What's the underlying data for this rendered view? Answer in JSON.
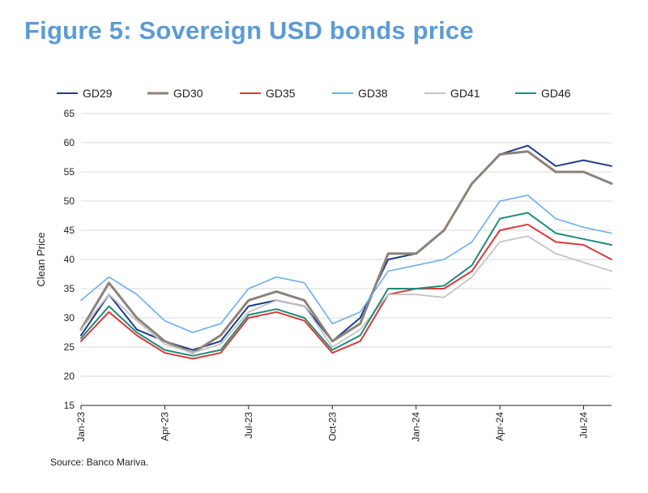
{
  "figure": {
    "title": "Figure 5: Sovereign USD bonds price",
    "source": "Source: Banco Mariva."
  },
  "chart_data": {
    "type": "line",
    "title": "Figure 5: Sovereign USD bonds price",
    "xlabel": "",
    "ylabel": "Clean Price",
    "ylim": [
      15,
      65
    ],
    "yticks": [
      15,
      20,
      25,
      30,
      35,
      40,
      45,
      50,
      55,
      60,
      65
    ],
    "grid": true,
    "legend_position": "top",
    "x_tick_labels": [
      "Jan-23",
      "Apr-23",
      "Jul-23",
      "Oct-23",
      "Jan-24",
      "Apr-24",
      "Jul-24"
    ],
    "x": [
      "Jan-23",
      "Feb-23",
      "Mar-23",
      "Apr-23",
      "May-23",
      "Jun-23",
      "Jul-23",
      "Aug-23",
      "Sep-23",
      "Oct-23",
      "Nov-23",
      "Dec-23",
      "Jan-24",
      "Feb-24",
      "Mar-24",
      "Apr-24",
      "May-24",
      "Jun-24",
      "Jul-24",
      "Aug-24"
    ],
    "series": [
      {
        "name": "GD29",
        "color": "#1f3c88",
        "width": 2.0,
        "values": [
          27,
          34,
          28,
          26,
          24.5,
          26,
          32,
          33,
          32,
          26,
          30,
          40,
          41,
          45,
          53,
          58,
          59.5,
          56,
          57,
          56
        ]
      },
      {
        "name": "GD30",
        "color": "#8c8279",
        "width": 3.0,
        "values": [
          28,
          36,
          30,
          26,
          24,
          27,
          33,
          34.5,
          33,
          26,
          29,
          41,
          41,
          45,
          53,
          58,
          58.5,
          55,
          55,
          53
        ]
      },
      {
        "name": "GD35",
        "color": "#d93a3a",
        "width": 2.0,
        "values": [
          26,
          31,
          27,
          24,
          23,
          24,
          30,
          31,
          29.5,
          24,
          26,
          34,
          35,
          35,
          38,
          45,
          46,
          43,
          42.5,
          40
        ]
      },
      {
        "name": "GD38",
        "color": "#6aaef0",
        "width": 1.6,
        "values": [
          33,
          37,
          34,
          29.5,
          27.5,
          29,
          35,
          37,
          36,
          29,
          31,
          38,
          39,
          40,
          43,
          50,
          51,
          47,
          45.5,
          44.5
        ]
      },
      {
        "name": "GD41",
        "color": "#c4c4c4",
        "width": 1.8,
        "values": [
          28,
          34,
          29.5,
          25.5,
          24,
          25.5,
          31,
          33,
          32,
          25,
          28,
          34,
          34,
          33.5,
          37,
          43,
          44,
          41,
          39.5,
          38
        ]
      },
      {
        "name": "GD46",
        "color": "#1e8c7a",
        "width": 2.0,
        "values": [
          26.5,
          32,
          27.5,
          24.5,
          23.5,
          24.5,
          30.5,
          31.5,
          30,
          24.5,
          27,
          35,
          35,
          35.5,
          39,
          47,
          48,
          44.5,
          43.5,
          42.5
        ]
      }
    ]
  }
}
